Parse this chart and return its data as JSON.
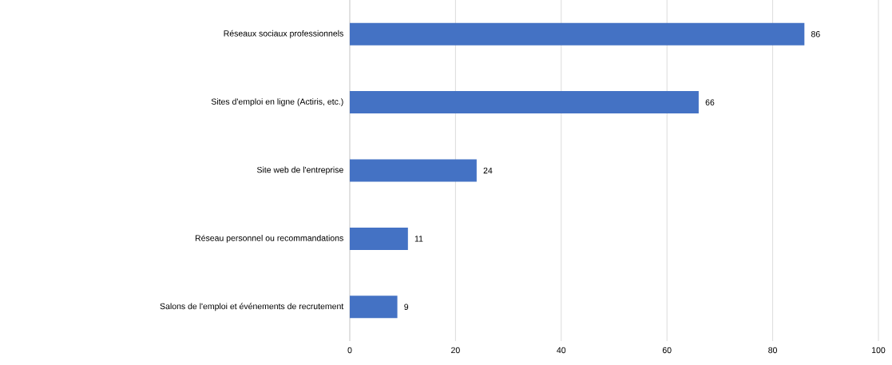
{
  "chart_data": {
    "type": "bar",
    "orientation": "horizontal",
    "categories": [
      "Réseaux sociaux professionnels",
      "Sites d'emploi en ligne (Actiris, etc.)",
      "Site web de l'entreprise",
      "Réseau personnel ou recommandations",
      "Salons de l'emploi et événements de recrutement"
    ],
    "values": [
      86,
      66,
      24,
      11,
      9
    ],
    "color": "#4472c4",
    "xlim": [
      0,
      100
    ],
    "xticks": [
      0,
      20,
      40,
      60,
      80,
      100
    ],
    "grid": "x",
    "data_labels": true
  }
}
